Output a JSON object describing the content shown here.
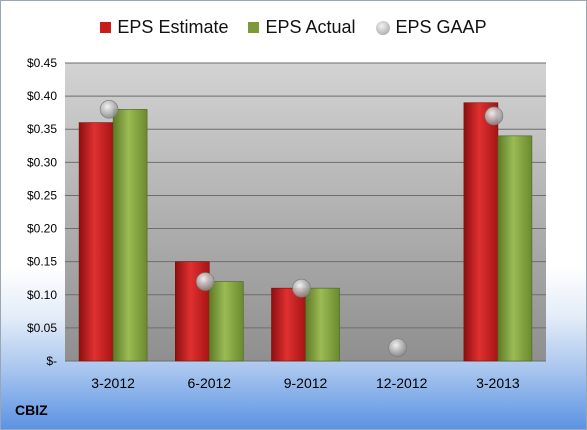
{
  "company": "CBIZ",
  "colors": {
    "estimate": "#c81d1d",
    "actual": "#7c9a3a",
    "gaap": "#a9a9a9"
  },
  "chart_data": {
    "type": "bar",
    "categories": [
      "3-2012",
      "6-2012",
      "9-2012",
      "12-2012",
      "3-2013"
    ],
    "series": [
      {
        "name": "EPS Estimate",
        "kind": "bar",
        "values": [
          0.36,
          0.15,
          0.11,
          null,
          0.39
        ]
      },
      {
        "name": "EPS Actual",
        "kind": "bar",
        "values": [
          0.38,
          0.12,
          0.11,
          null,
          0.34
        ]
      },
      {
        "name": "EPS GAAP",
        "kind": "scatter",
        "values": [
          0.38,
          0.12,
          0.11,
          0.02,
          0.37
        ]
      }
    ],
    "yticks": [
      "$-",
      "$0.05",
      "$0.10",
      "$0.15",
      "$0.20",
      "$0.25",
      "$0.30",
      "$0.35",
      "$0.40",
      "$0.45"
    ],
    "ylim": [
      0,
      0.45
    ],
    "grid": true,
    "legend": "top"
  }
}
